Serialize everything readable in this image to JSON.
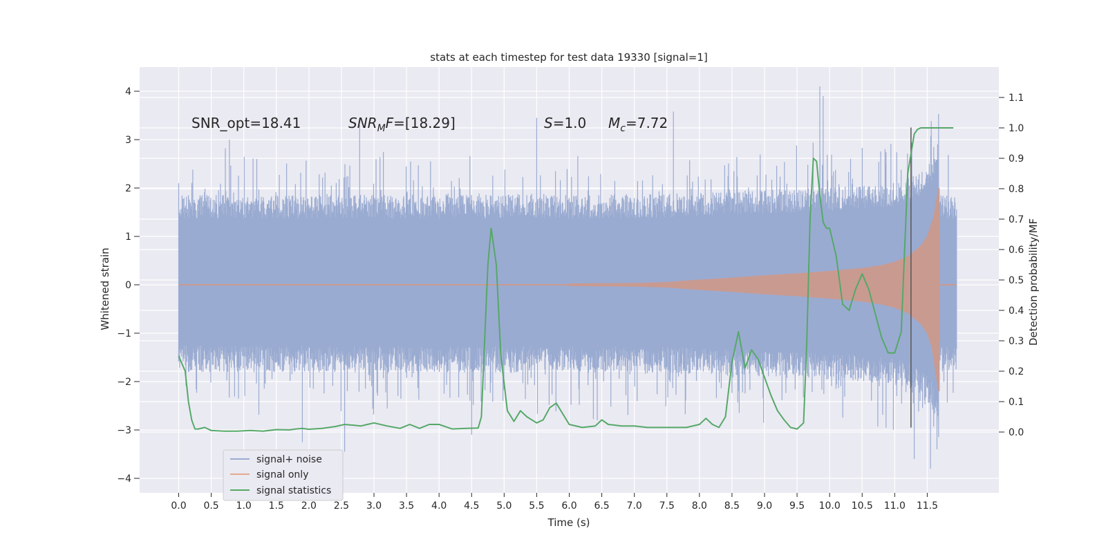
{
  "chart_data": {
    "type": "line",
    "title": "stats at each timestep for test data 19330 [signal=1]",
    "xlabel": "Time (s)",
    "ylabel": "Whitened strain",
    "y2label": "Detection probability/MF",
    "xlim": [
      -0.6,
      12.6
    ],
    "ylim": [
      -4.3,
      4.5
    ],
    "y2lim": [
      -0.2,
      1.2
    ],
    "xticks": [
      0.0,
      0.5,
      1.0,
      1.5,
      2.0,
      2.5,
      3.0,
      3.5,
      4.0,
      4.5,
      5.0,
      5.5,
      6.0,
      6.5,
      7.0,
      7.5,
      8.0,
      8.5,
      9.0,
      9.5,
      10.0,
      10.5,
      11.0,
      11.5
    ],
    "xtick_labels": [
      "0.0",
      "0.5",
      "1.0",
      "1.5",
      "2.0",
      "2.5",
      "3.0",
      "3.5",
      "4.0",
      "4.5",
      "5.0",
      "5.5",
      "6.0",
      "6.5",
      "7.0",
      "7.5",
      "8.0",
      "8.5",
      "9.0",
      "9.5",
      "10.0",
      "10.5",
      "11.0",
      "11.5"
    ],
    "yticks": [
      -4,
      -3,
      -2,
      -1,
      0,
      1,
      2,
      3,
      4
    ],
    "ytick_labels": [
      "−4",
      "−3",
      "−2",
      "−1",
      "0",
      "1",
      "2",
      "3",
      "4"
    ],
    "y2ticks": [
      0.0,
      0.1,
      0.2,
      0.3,
      0.4,
      0.5,
      0.6,
      0.7,
      0.8,
      0.9,
      1.0,
      1.1
    ],
    "y2tick_labels": [
      "0.0",
      "0.1",
      "0.2",
      "0.3",
      "0.4",
      "0.5",
      "0.6",
      "0.7",
      "0.8",
      "0.9",
      "1.0",
      "1.1"
    ],
    "grid": true,
    "legend_position": "lower-left",
    "annotations": {
      "snr_opt": "SNR_opt=18.41",
      "snr_mf": "SNR_MF=[18.29]",
      "s_value": "S=1.0",
      "mc_value": "M_c=7.72"
    },
    "marker_line": {
      "x": 11.25,
      "y_range": [
        -2.95,
        3.25
      ],
      "color": "#555555"
    },
    "colors": {
      "background": "#eaeaf2",
      "grid": "#ffffff",
      "noise": "#4c72b0",
      "signal": "#dd8452",
      "stats": "#55a868"
    },
    "series": [
      {
        "name": "signal+ noise",
        "axis": "left",
        "description_values": {
          "time_range": [
            0.0,
            11.95
          ],
          "dense_band": [
            -1.3,
            1.4
          ],
          "positive_peaks": [
            [
              0.0,
              2.1
            ],
            [
              0.78,
              3.0
            ],
            [
              1.2,
              2.6
            ],
            [
              2.78,
              3.3
            ],
            [
              5.5,
              3.45
            ],
            [
              7.6,
              3.58
            ],
            [
              9.85,
              4.1
            ],
            [
              9.9,
              3.9
            ],
            [
              11.6,
              2.85
            ]
          ],
          "negative_peaks": [
            [
              1.9,
              -3.25
            ],
            [
              2.55,
              -3.45
            ],
            [
              4.5,
              -3.1
            ],
            [
              11.3,
              -3.6
            ],
            [
              11.55,
              -3.8
            ],
            [
              11.65,
              -3.4
            ]
          ]
        }
      },
      {
        "name": "signal only",
        "axis": "left",
        "envelope": {
          "t": [
            0.0,
            6.0,
            7.0,
            7.5,
            8.0,
            8.5,
            9.0,
            9.5,
            10.0,
            10.5,
            10.8,
            11.0,
            11.2,
            11.4,
            11.5,
            11.6,
            11.65,
            11.68
          ],
          "amplitude": [
            0.01,
            0.02,
            0.03,
            0.05,
            0.1,
            0.14,
            0.19,
            0.23,
            0.28,
            0.34,
            0.4,
            0.47,
            0.58,
            0.8,
            1.0,
            1.4,
            1.8,
            2.0
          ]
        }
      },
      {
        "name": "signal statistics",
        "axis": "right",
        "x": [
          0.0,
          0.1,
          0.15,
          0.2,
          0.25,
          0.3,
          0.4,
          0.5,
          0.7,
          0.9,
          1.1,
          1.3,
          1.5,
          1.7,
          1.8,
          1.9,
          2.0,
          2.2,
          2.4,
          2.55,
          2.7,
          2.8,
          2.9,
          3.0,
          3.2,
          3.4,
          3.55,
          3.7,
          3.85,
          4.0,
          4.2,
          4.4,
          4.6,
          4.65,
          4.7,
          4.75,
          4.8,
          4.88,
          4.95,
          5.05,
          5.15,
          5.25,
          5.35,
          5.5,
          5.6,
          5.7,
          5.8,
          5.9,
          6.0,
          6.2,
          6.4,
          6.5,
          6.6,
          6.8,
          7.0,
          7.2,
          7.5,
          7.8,
          8.0,
          8.1,
          8.2,
          8.3,
          8.4,
          8.5,
          8.6,
          8.7,
          8.8,
          8.9,
          9.0,
          9.1,
          9.2,
          9.3,
          9.4,
          9.5,
          9.6,
          9.65,
          9.7,
          9.75,
          9.8,
          9.85,
          9.9,
          9.95,
          10.0,
          10.1,
          10.2,
          10.3,
          10.4,
          10.5,
          10.6,
          10.7,
          10.8,
          10.9,
          11.0,
          11.1,
          11.2,
          11.3,
          11.35,
          11.4,
          11.5,
          11.6,
          11.8,
          11.9
        ],
        "values": [
          0.25,
          0.2,
          0.1,
          0.04,
          0.01,
          0.01,
          0.015,
          0.005,
          0.003,
          0.003,
          0.005,
          0.003,
          0.008,
          0.007,
          0.01,
          0.012,
          0.009,
          0.012,
          0.018,
          0.025,
          0.022,
          0.02,
          0.025,
          0.03,
          0.02,
          0.012,
          0.025,
          0.012,
          0.025,
          0.025,
          0.01,
          0.012,
          0.013,
          0.05,
          0.3,
          0.55,
          0.67,
          0.55,
          0.25,
          0.07,
          0.035,
          0.07,
          0.05,
          0.03,
          0.04,
          0.08,
          0.095,
          0.06,
          0.025,
          0.015,
          0.02,
          0.04,
          0.025,
          0.02,
          0.02,
          0.015,
          0.015,
          0.015,
          0.025,
          0.045,
          0.025,
          0.015,
          0.05,
          0.23,
          0.33,
          0.21,
          0.27,
          0.24,
          0.18,
          0.12,
          0.07,
          0.04,
          0.015,
          0.01,
          0.03,
          0.3,
          0.7,
          0.9,
          0.89,
          0.78,
          0.69,
          0.67,
          0.67,
          0.58,
          0.42,
          0.4,
          0.47,
          0.52,
          0.47,
          0.39,
          0.31,
          0.26,
          0.26,
          0.33,
          0.85,
          0.98,
          0.995,
          1.0,
          1.0,
          1.0,
          1.0,
          1.0
        ]
      }
    ],
    "legend": [
      {
        "label": "signal+ noise",
        "color": "#4c72b0"
      },
      {
        "label": "signal only",
        "color": "#dd8452"
      },
      {
        "label": "signal statistics",
        "color": "#55a868"
      }
    ]
  }
}
